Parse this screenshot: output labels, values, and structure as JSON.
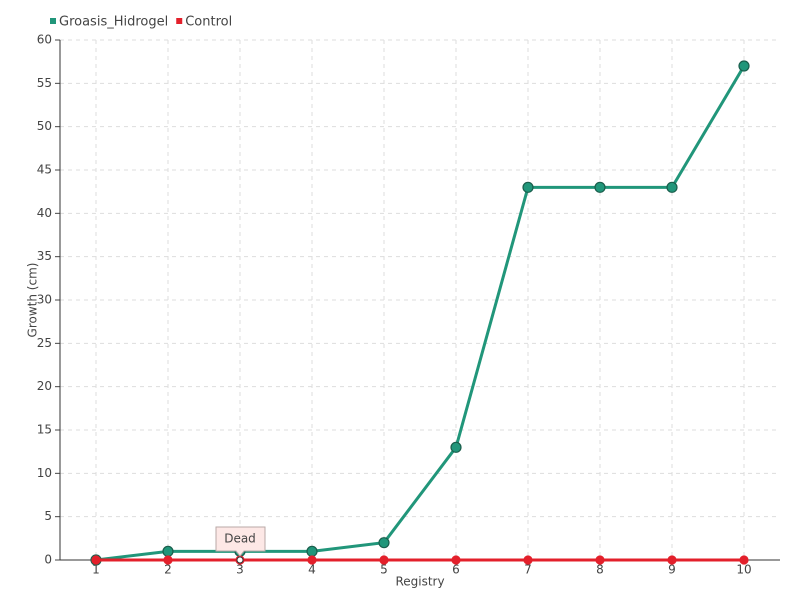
{
  "chart_data": {
    "type": "line",
    "x_label": "Registry",
    "y_label": "Growth (cm)",
    "categories": [
      "1",
      "2",
      "3",
      "4",
      "5",
      "6",
      "7",
      "8",
      "9",
      "10"
    ],
    "series": [
      {
        "name": "Groasis_Hidrogel",
        "color": "#21967a",
        "values": [
          0,
          1,
          1,
          1,
          2,
          13,
          43,
          43,
          43,
          57
        ]
      },
      {
        "name": "Control",
        "color": "#e3202b",
        "values": [
          0,
          0,
          0,
          0,
          0,
          0,
          0,
          0,
          0,
          0
        ]
      }
    ],
    "annotations": [
      {
        "text": "Dead",
        "x": "3",
        "y": 0
      }
    ],
    "ylim": [
      0,
      60
    ],
    "yticks": [
      0,
      5,
      10,
      15,
      20,
      25,
      30,
      35,
      40,
      45,
      50,
      55,
      60
    ],
    "grid": true,
    "legend": "top-left"
  }
}
